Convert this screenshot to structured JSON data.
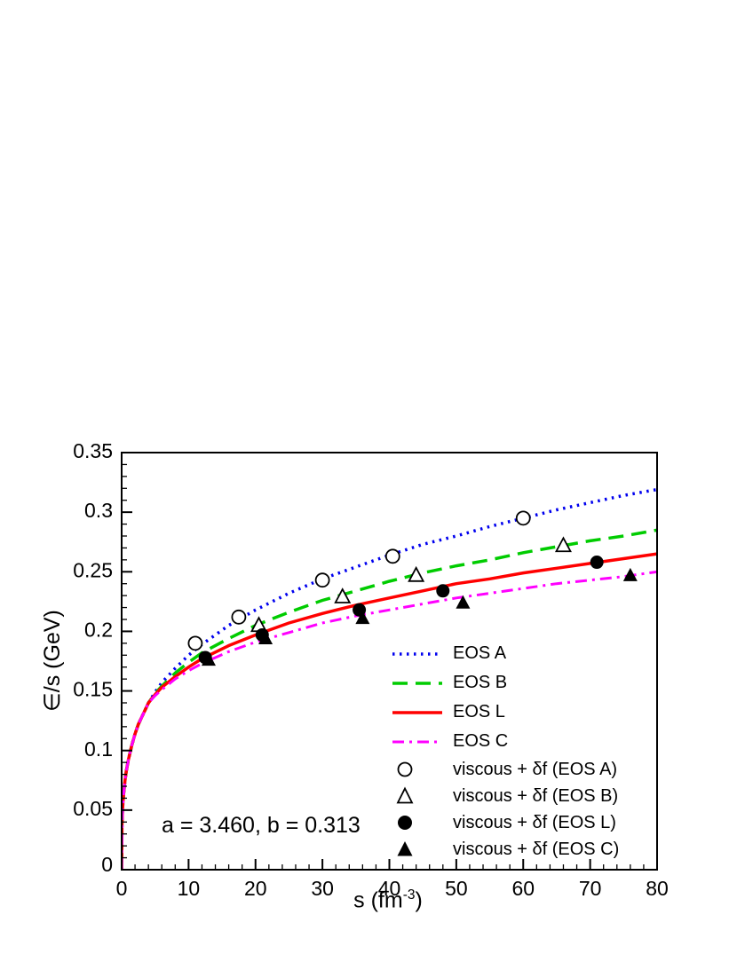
{
  "figure": {
    "background": "#ffffff",
    "annotation": "a = 3.460, b = 0.313",
    "ylabel": "∈/s (GeV)",
    "xlabel": {
      "main": "s (fm",
      "sup": "-3",
      "close": ")"
    }
  },
  "chart_data": {
    "type": "line",
    "title": "",
    "xlabel": "s (fm^-3)",
    "ylabel": "epsilon/s (GeV)",
    "xlim": [
      0,
      80
    ],
    "ylim": [
      0,
      0.35
    ],
    "x_ticks": [
      0,
      10,
      20,
      30,
      40,
      50,
      60,
      70,
      80
    ],
    "x_tick_labels": [
      "0",
      "10",
      "20",
      "30",
      "40",
      "50",
      "60",
      "70",
      "80"
    ],
    "y_ticks": [
      0,
      0.05,
      0.1,
      0.15,
      0.2,
      0.25,
      0.3,
      0.35
    ],
    "y_tick_labels": [
      "0",
      "0.05",
      "0.1",
      "0.15",
      "0.2",
      "0.25",
      "0.3",
      "0.35"
    ],
    "x_minor_step": 2,
    "y_minor_step": 0.01,
    "grid": false,
    "legend_position": "inside lower-right",
    "annotation": "a = 3.460, b = 0.313",
    "common_prefix": [
      [
        0,
        0
      ],
      [
        0.05,
        0.038
      ],
      [
        0.1,
        0.047
      ],
      [
        0.2,
        0.057
      ],
      [
        0.3,
        0.064
      ],
      [
        0.5,
        0.075
      ],
      [
        0.7,
        0.083
      ],
      [
        1,
        0.092
      ],
      [
        1.5,
        0.104
      ],
      [
        2,
        0.114
      ],
      [
        2.5,
        0.122
      ],
      [
        3,
        0.128
      ],
      [
        3.5,
        0.134
      ],
      [
        4,
        0.14
      ]
    ],
    "curves": [
      {
        "name": "EOS A",
        "color": "#0000ee",
        "dash": "2.5 5.5",
        "width": 3.5,
        "points": [
          [
            5,
            0.149
          ],
          [
            6,
            0.157
          ],
          [
            8,
            0.169
          ],
          [
            10,
            0.18
          ],
          [
            12,
            0.189
          ],
          [
            16,
            0.205
          ],
          [
            20,
            0.218
          ],
          [
            25,
            0.232
          ],
          [
            30,
            0.244
          ],
          [
            35,
            0.254
          ],
          [
            40,
            0.264
          ],
          [
            45,
            0.273
          ],
          [
            50,
            0.28
          ],
          [
            55,
            0.288
          ],
          [
            60,
            0.295
          ],
          [
            65,
            0.302
          ],
          [
            70,
            0.308
          ],
          [
            75,
            0.314
          ],
          [
            80,
            0.319
          ]
        ]
      },
      {
        "name": "EOS B",
        "color": "#00cc00",
        "dash": "17 9",
        "width": 3.5,
        "points": [
          [
            5,
            0.148
          ],
          [
            6,
            0.154
          ],
          [
            8,
            0.165
          ],
          [
            10,
            0.174
          ],
          [
            12,
            0.182
          ],
          [
            16,
            0.194
          ],
          [
            20,
            0.205
          ],
          [
            25,
            0.216
          ],
          [
            30,
            0.226
          ],
          [
            35,
            0.234
          ],
          [
            40,
            0.242
          ],
          [
            45,
            0.249
          ],
          [
            50,
            0.255
          ],
          [
            55,
            0.26
          ],
          [
            60,
            0.266
          ],
          [
            65,
            0.271
          ],
          [
            70,
            0.276
          ],
          [
            75,
            0.28
          ],
          [
            80,
            0.285
          ]
        ]
      },
      {
        "name": "EOS L",
        "color": "#ff0000",
        "dash": "",
        "width": 3.5,
        "points": [
          [
            5,
            0.147
          ],
          [
            6,
            0.153
          ],
          [
            8,
            0.162
          ],
          [
            10,
            0.17
          ],
          [
            12,
            0.177
          ],
          [
            16,
            0.188
          ],
          [
            20,
            0.197
          ],
          [
            25,
            0.207
          ],
          [
            30,
            0.215
          ],
          [
            35,
            0.222
          ],
          [
            40,
            0.228
          ],
          [
            45,
            0.234
          ],
          [
            50,
            0.24
          ],
          [
            55,
            0.244
          ],
          [
            60,
            0.249
          ],
          [
            65,
            0.253
          ],
          [
            70,
            0.257
          ],
          [
            75,
            0.261
          ],
          [
            80,
            0.265
          ]
        ]
      },
      {
        "name": "EOS C",
        "color": "#ff00ff",
        "dash": "13 6 3 6",
        "width": 3,
        "points": [
          [
            5,
            0.146
          ],
          [
            6,
            0.151
          ],
          [
            8,
            0.16
          ],
          [
            10,
            0.167
          ],
          [
            12,
            0.173
          ],
          [
            16,
            0.183
          ],
          [
            20,
            0.191
          ],
          [
            25,
            0.199
          ],
          [
            30,
            0.207
          ],
          [
            35,
            0.213
          ],
          [
            40,
            0.218
          ],
          [
            45,
            0.223
          ],
          [
            50,
            0.228
          ],
          [
            55,
            0.232
          ],
          [
            60,
            0.236
          ],
          [
            65,
            0.24
          ],
          [
            70,
            0.243
          ],
          [
            75,
            0.246
          ],
          [
            80,
            0.25
          ]
        ]
      }
    ],
    "scatter": [
      {
        "name": "viscous + δf (EOS A)",
        "marker": "open-circle",
        "points": [
          [
            11,
            0.19
          ],
          [
            17.5,
            0.212
          ],
          [
            30,
            0.243
          ],
          [
            40.5,
            0.263
          ],
          [
            60,
            0.295
          ]
        ]
      },
      {
        "name": "viscous + δf (EOS B)",
        "marker": "open-triangle",
        "points": [
          [
            20.5,
            0.205
          ],
          [
            33,
            0.229
          ],
          [
            44,
            0.247
          ],
          [
            66,
            0.272
          ]
        ]
      },
      {
        "name": "viscous + δf (EOS L)",
        "marker": "filled-circle",
        "points": [
          [
            12.5,
            0.178
          ],
          [
            21,
            0.197
          ],
          [
            35.5,
            0.218
          ],
          [
            48,
            0.234
          ],
          [
            71,
            0.258
          ]
        ]
      },
      {
        "name": "viscous + δf (EOS C)",
        "marker": "filled-triangle",
        "points": [
          [
            13,
            0.176
          ],
          [
            21.5,
            0.194
          ],
          [
            36,
            0.211
          ],
          [
            51,
            0.224
          ],
          [
            76,
            0.247
          ]
        ]
      }
    ],
    "legend": [
      {
        "label": "EOS A",
        "type": "line",
        "style": "dotted",
        "color": "#0000ee"
      },
      {
        "label": "EOS B",
        "type": "line",
        "style": "dashed",
        "color": "#00cc00"
      },
      {
        "label": "EOS L",
        "type": "line",
        "style": "solid",
        "color": "#ff0000"
      },
      {
        "label": "EOS C",
        "type": "line",
        "style": "dash-dot",
        "color": "#ff00ff"
      },
      {
        "label": "viscous + δf (EOS A)",
        "type": "marker",
        "style": "open-circle",
        "color": "#000000"
      },
      {
        "label": "viscous + δf (EOS B)",
        "type": "marker",
        "style": "open-triangle",
        "color": "#000000"
      },
      {
        "label": "viscous + δf (EOS L)",
        "type": "marker",
        "style": "filled-circle",
        "color": "#000000"
      },
      {
        "label": "viscous + δf (EOS C)",
        "type": "marker",
        "style": "filled-triangle",
        "color": "#000000"
      }
    ]
  }
}
